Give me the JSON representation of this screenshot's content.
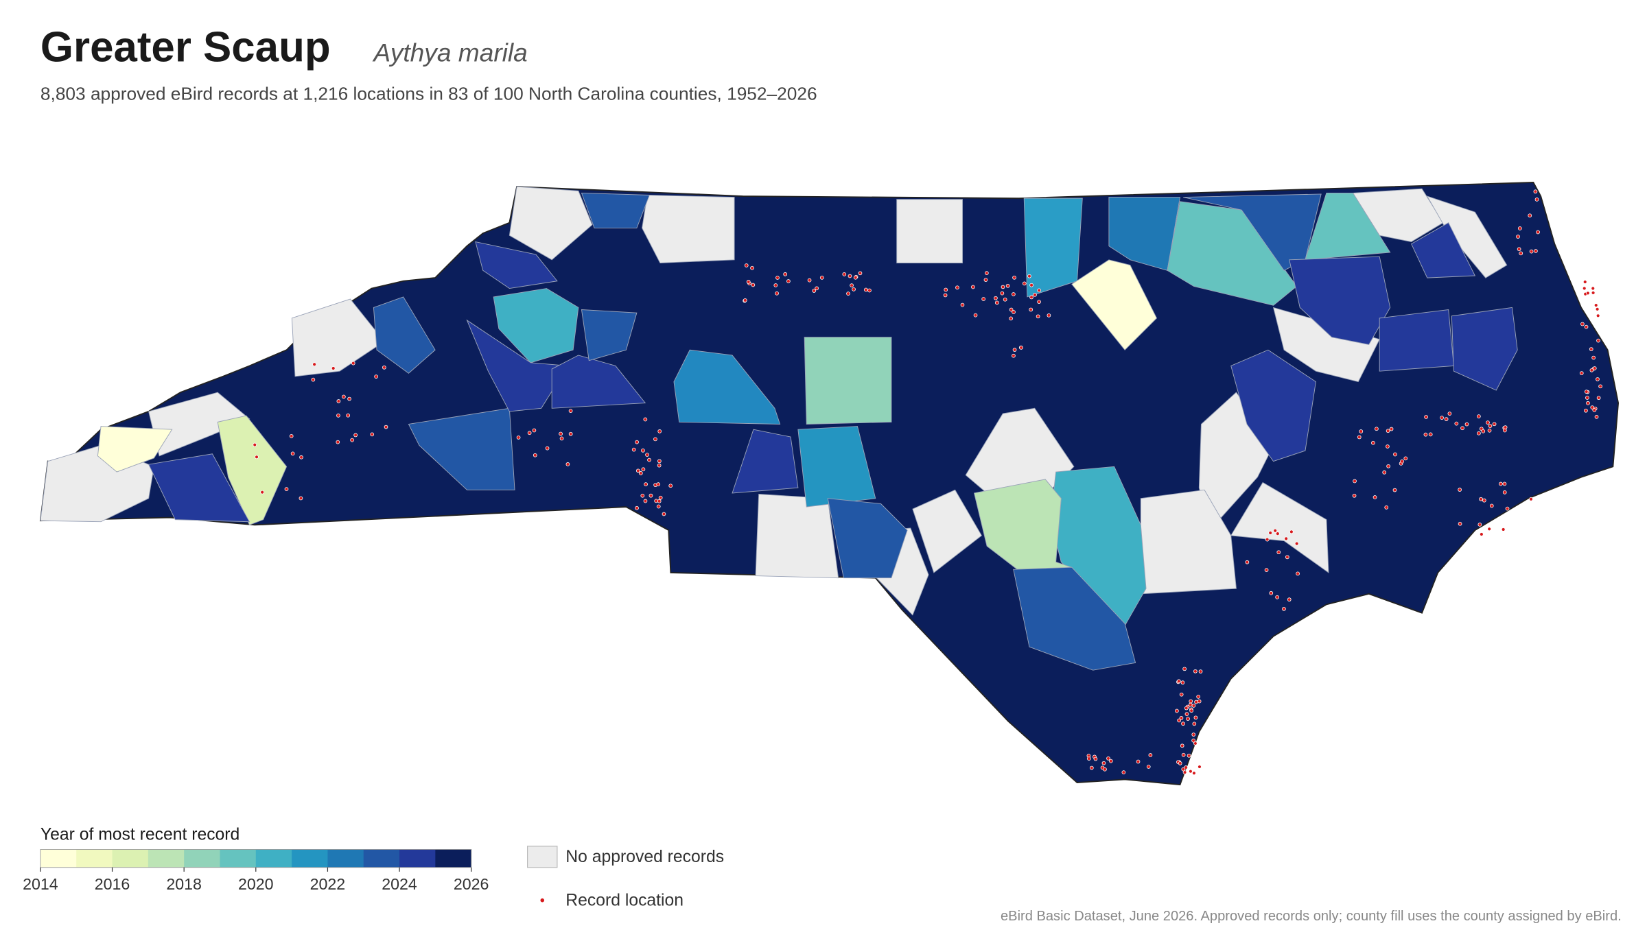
{
  "header": {
    "title": "Greater Scaup",
    "scientific_name": "Aythya marila",
    "subtitle": "8,803 approved eBird records at 1,216 locations in 83 of 100 North Carolina counties, 1952–2026"
  },
  "legend": {
    "title": "Year of most recent record",
    "colorbar": {
      "range": [
        2014,
        2026
      ],
      "ticks": [
        2014,
        2016,
        2018,
        2020,
        2022,
        2024,
        2026
      ],
      "colors": [
        "#ffffd9",
        "#f1f9bf",
        "#dcf1b2",
        "#bce4b5",
        "#91d3b9",
        "#65c3bf",
        "#3fb0c4",
        "#2495c1",
        "#1f78b4",
        "#2257a5",
        "#23399a",
        "#0b1e5b"
      ]
    },
    "no_data_label": "No approved records",
    "record_label": "Record location"
  },
  "source": "eBird Basic Dataset, June 2026. Approved records only; county fill uses the county assigned by eBird."
}
